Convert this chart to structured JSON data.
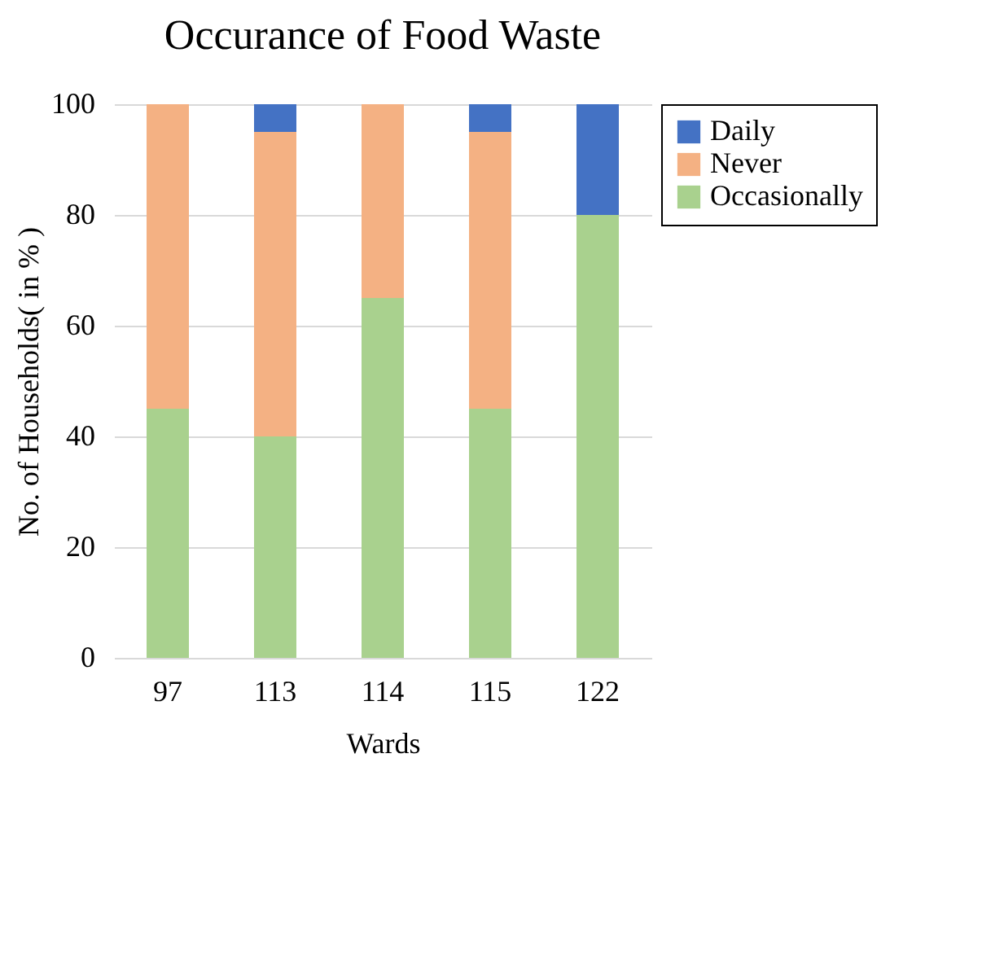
{
  "chart_data": {
    "type": "bar",
    "title": "Occurance  of Food Waste",
    "xlabel": "Wards",
    "ylabel": "No. of Households( in % )",
    "categories": [
      "97",
      "113",
      "114",
      "115",
      "122"
    ],
    "series": [
      {
        "name": "Occasionally",
        "color": "#a9d18e",
        "values": [
          45,
          40,
          65,
          45,
          80
        ]
      },
      {
        "name": "Never",
        "color": "#f4b183",
        "values": [
          55,
          55,
          35,
          50,
          0
        ]
      },
      {
        "name": "Daily",
        "color": "#4472c4",
        "values": [
          0,
          5,
          0,
          5,
          20
        ]
      }
    ],
    "stacked": true,
    "ylim": [
      0,
      100
    ],
    "yticks": [
      0,
      20,
      40,
      60,
      80,
      100
    ],
    "grid": "y",
    "legend": "right"
  }
}
